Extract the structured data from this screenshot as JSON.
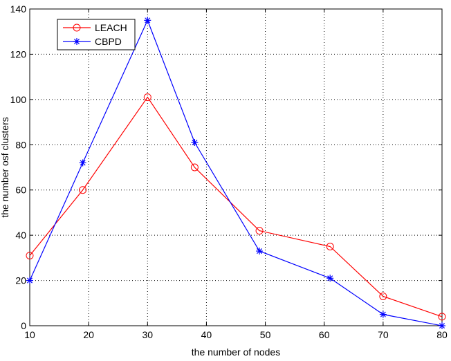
{
  "chart_data": {
    "type": "line",
    "xlabel": "the number of nodes",
    "ylabel": "the number osf clusters",
    "xlim": [
      10,
      80
    ],
    "ylim": [
      0,
      140
    ],
    "xticks": [
      10,
      20,
      30,
      40,
      50,
      60,
      70,
      80
    ],
    "yticks": [
      0,
      20,
      40,
      60,
      80,
      100,
      120,
      140
    ],
    "grid": true,
    "legend_position": "top-left",
    "series": [
      {
        "name": "LEACH",
        "color": "#ff0000",
        "marker": "circle",
        "x": [
          10,
          19,
          30,
          38,
          49,
          61,
          70,
          80
        ],
        "y": [
          31,
          60,
          101,
          70,
          42,
          35,
          13,
          4
        ]
      },
      {
        "name": "CBPD",
        "color": "#0000ff",
        "marker": "star",
        "x": [
          10,
          19,
          30,
          38,
          49,
          61,
          70,
          80
        ],
        "y": [
          20,
          72,
          135,
          81,
          33,
          21,
          5,
          0
        ]
      }
    ]
  }
}
